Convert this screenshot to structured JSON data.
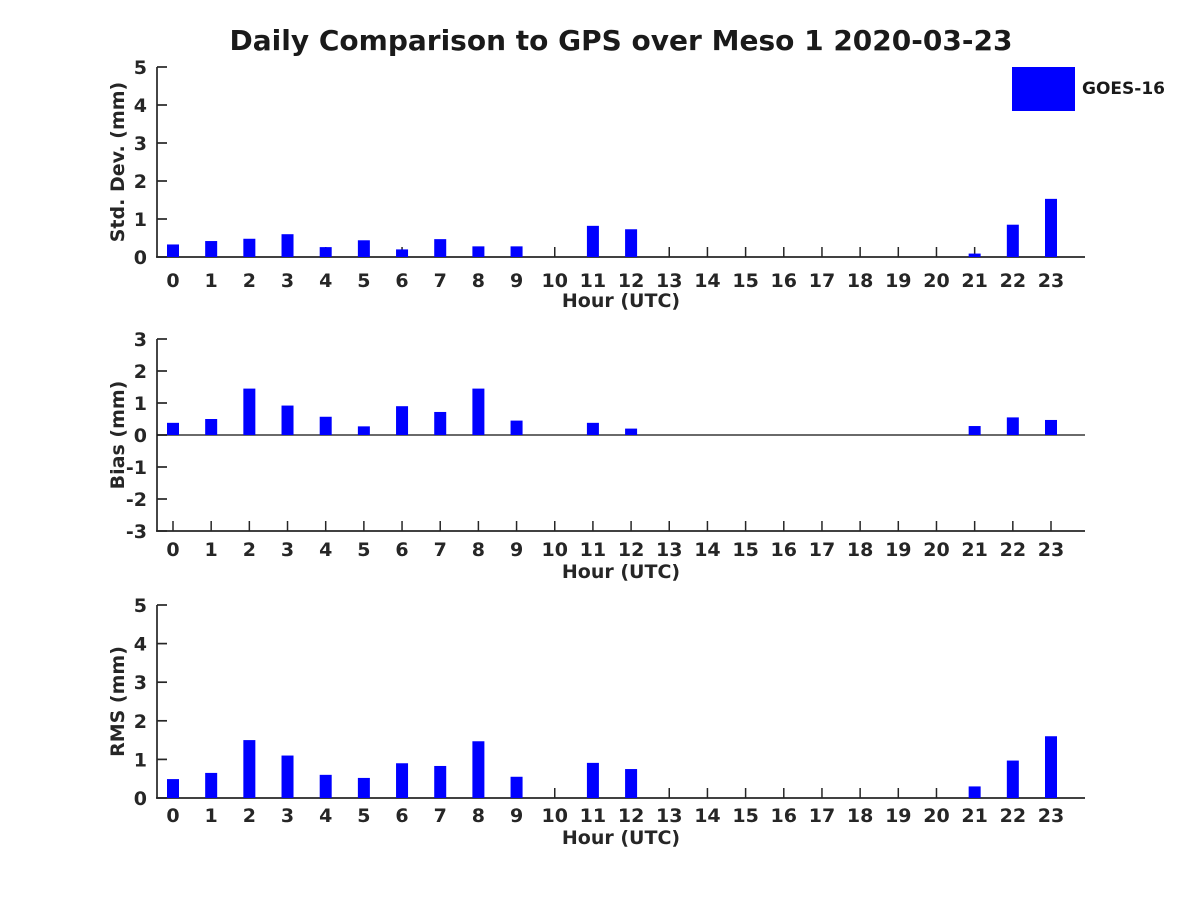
{
  "figure": {
    "title": "Daily Comparison to GPS over Meso 1 2020-03-23",
    "legend": {
      "label": "GOES-16",
      "color": "#0000FF",
      "position": "top-right"
    }
  },
  "chart_data": [
    {
      "type": "bar",
      "series_name": "GOES-16",
      "ylabel": "Std. Dev. (mm)",
      "xlabel": "Hour (UTC)",
      "ylim": [
        0,
        5
      ],
      "yticks": [
        0,
        1,
        2,
        3,
        4,
        5
      ],
      "grid": false,
      "bar_color": "#0000FF",
      "categories": [
        "0",
        "1",
        "2",
        "3",
        "4",
        "5",
        "6",
        "7",
        "8",
        "9",
        "10",
        "11",
        "12",
        "13",
        "14",
        "15",
        "16",
        "17",
        "18",
        "19",
        "20",
        "21",
        "22",
        "23"
      ],
      "values": [
        0.33,
        0.42,
        0.48,
        0.6,
        0.26,
        0.44,
        0.2,
        0.47,
        0.28,
        0.28,
        0,
        0.82,
        0.73,
        0,
        0,
        0,
        0,
        0,
        0,
        0,
        0,
        0.09,
        0.85,
        1.53
      ]
    },
    {
      "type": "bar",
      "series_name": "GOES-16",
      "ylabel": "Bias (mm)",
      "xlabel": "Hour (UTC)",
      "ylim": [
        -3,
        3
      ],
      "yticks": [
        -3,
        -2,
        -1,
        0,
        1,
        2,
        3
      ],
      "grid": false,
      "bar_color": "#0000FF",
      "categories": [
        "0",
        "1",
        "2",
        "3",
        "4",
        "5",
        "6",
        "7",
        "8",
        "9",
        "10",
        "11",
        "12",
        "13",
        "14",
        "15",
        "16",
        "17",
        "18",
        "19",
        "20",
        "21",
        "22",
        "23"
      ],
      "values": [
        0.38,
        0.5,
        1.45,
        0.92,
        0.57,
        0.27,
        0.9,
        0.72,
        1.45,
        0.45,
        0,
        0.38,
        0.2,
        0,
        0,
        0,
        0,
        0,
        0,
        0,
        0,
        0.28,
        0.55,
        0.47
      ]
    },
    {
      "type": "bar",
      "series_name": "GOES-16",
      "ylabel": "RMS (mm)",
      "xlabel": "Hour (UTC)",
      "ylim": [
        0,
        5
      ],
      "yticks": [
        0,
        1,
        2,
        3,
        4,
        5
      ],
      "grid": false,
      "bar_color": "#0000FF",
      "categories": [
        "0",
        "1",
        "2",
        "3",
        "4",
        "5",
        "6",
        "7",
        "8",
        "9",
        "10",
        "11",
        "12",
        "13",
        "14",
        "15",
        "16",
        "17",
        "18",
        "19",
        "20",
        "21",
        "22",
        "23"
      ],
      "values": [
        0.49,
        0.65,
        1.5,
        1.1,
        0.6,
        0.52,
        0.9,
        0.83,
        1.47,
        0.55,
        0,
        0.91,
        0.75,
        0,
        0,
        0,
        0,
        0,
        0,
        0,
        0,
        0.3,
        0.97,
        1.6
      ]
    }
  ]
}
